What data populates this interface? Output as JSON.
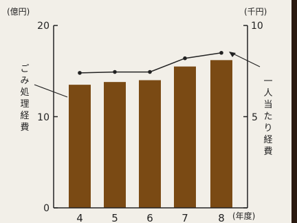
{
  "chart_data": {
    "type": "bar",
    "categories": [
      "4",
      "5",
      "6",
      "7",
      "8"
    ],
    "x_unit": "(年度)",
    "bar_color": "#7a4a14",
    "line_color": "#222222",
    "series": [
      {
        "type": "bar",
        "axis": "left",
        "values": [
          13.5,
          13.8,
          14.0,
          15.5,
          16.2
        ]
      },
      {
        "type": "line",
        "axis": "right",
        "values": [
          7.4,
          7.45,
          7.45,
          8.2,
          8.5
        ]
      }
    ],
    "left_axis": {
      "unit": "(億円)",
      "ticks": [
        "20",
        "10",
        "0"
      ],
      "ylim": [
        0,
        20
      ],
      "label_chars": [
        "ご",
        "み",
        "処",
        "理",
        "経",
        "費"
      ]
    },
    "right_axis": {
      "unit": "(千円)",
      "ticks": [
        "10",
        "5"
      ],
      "ylim": [
        0,
        10
      ],
      "label_chars": [
        "一",
        "人",
        "当",
        "た",
        "り",
        "経",
        "費"
      ]
    }
  }
}
